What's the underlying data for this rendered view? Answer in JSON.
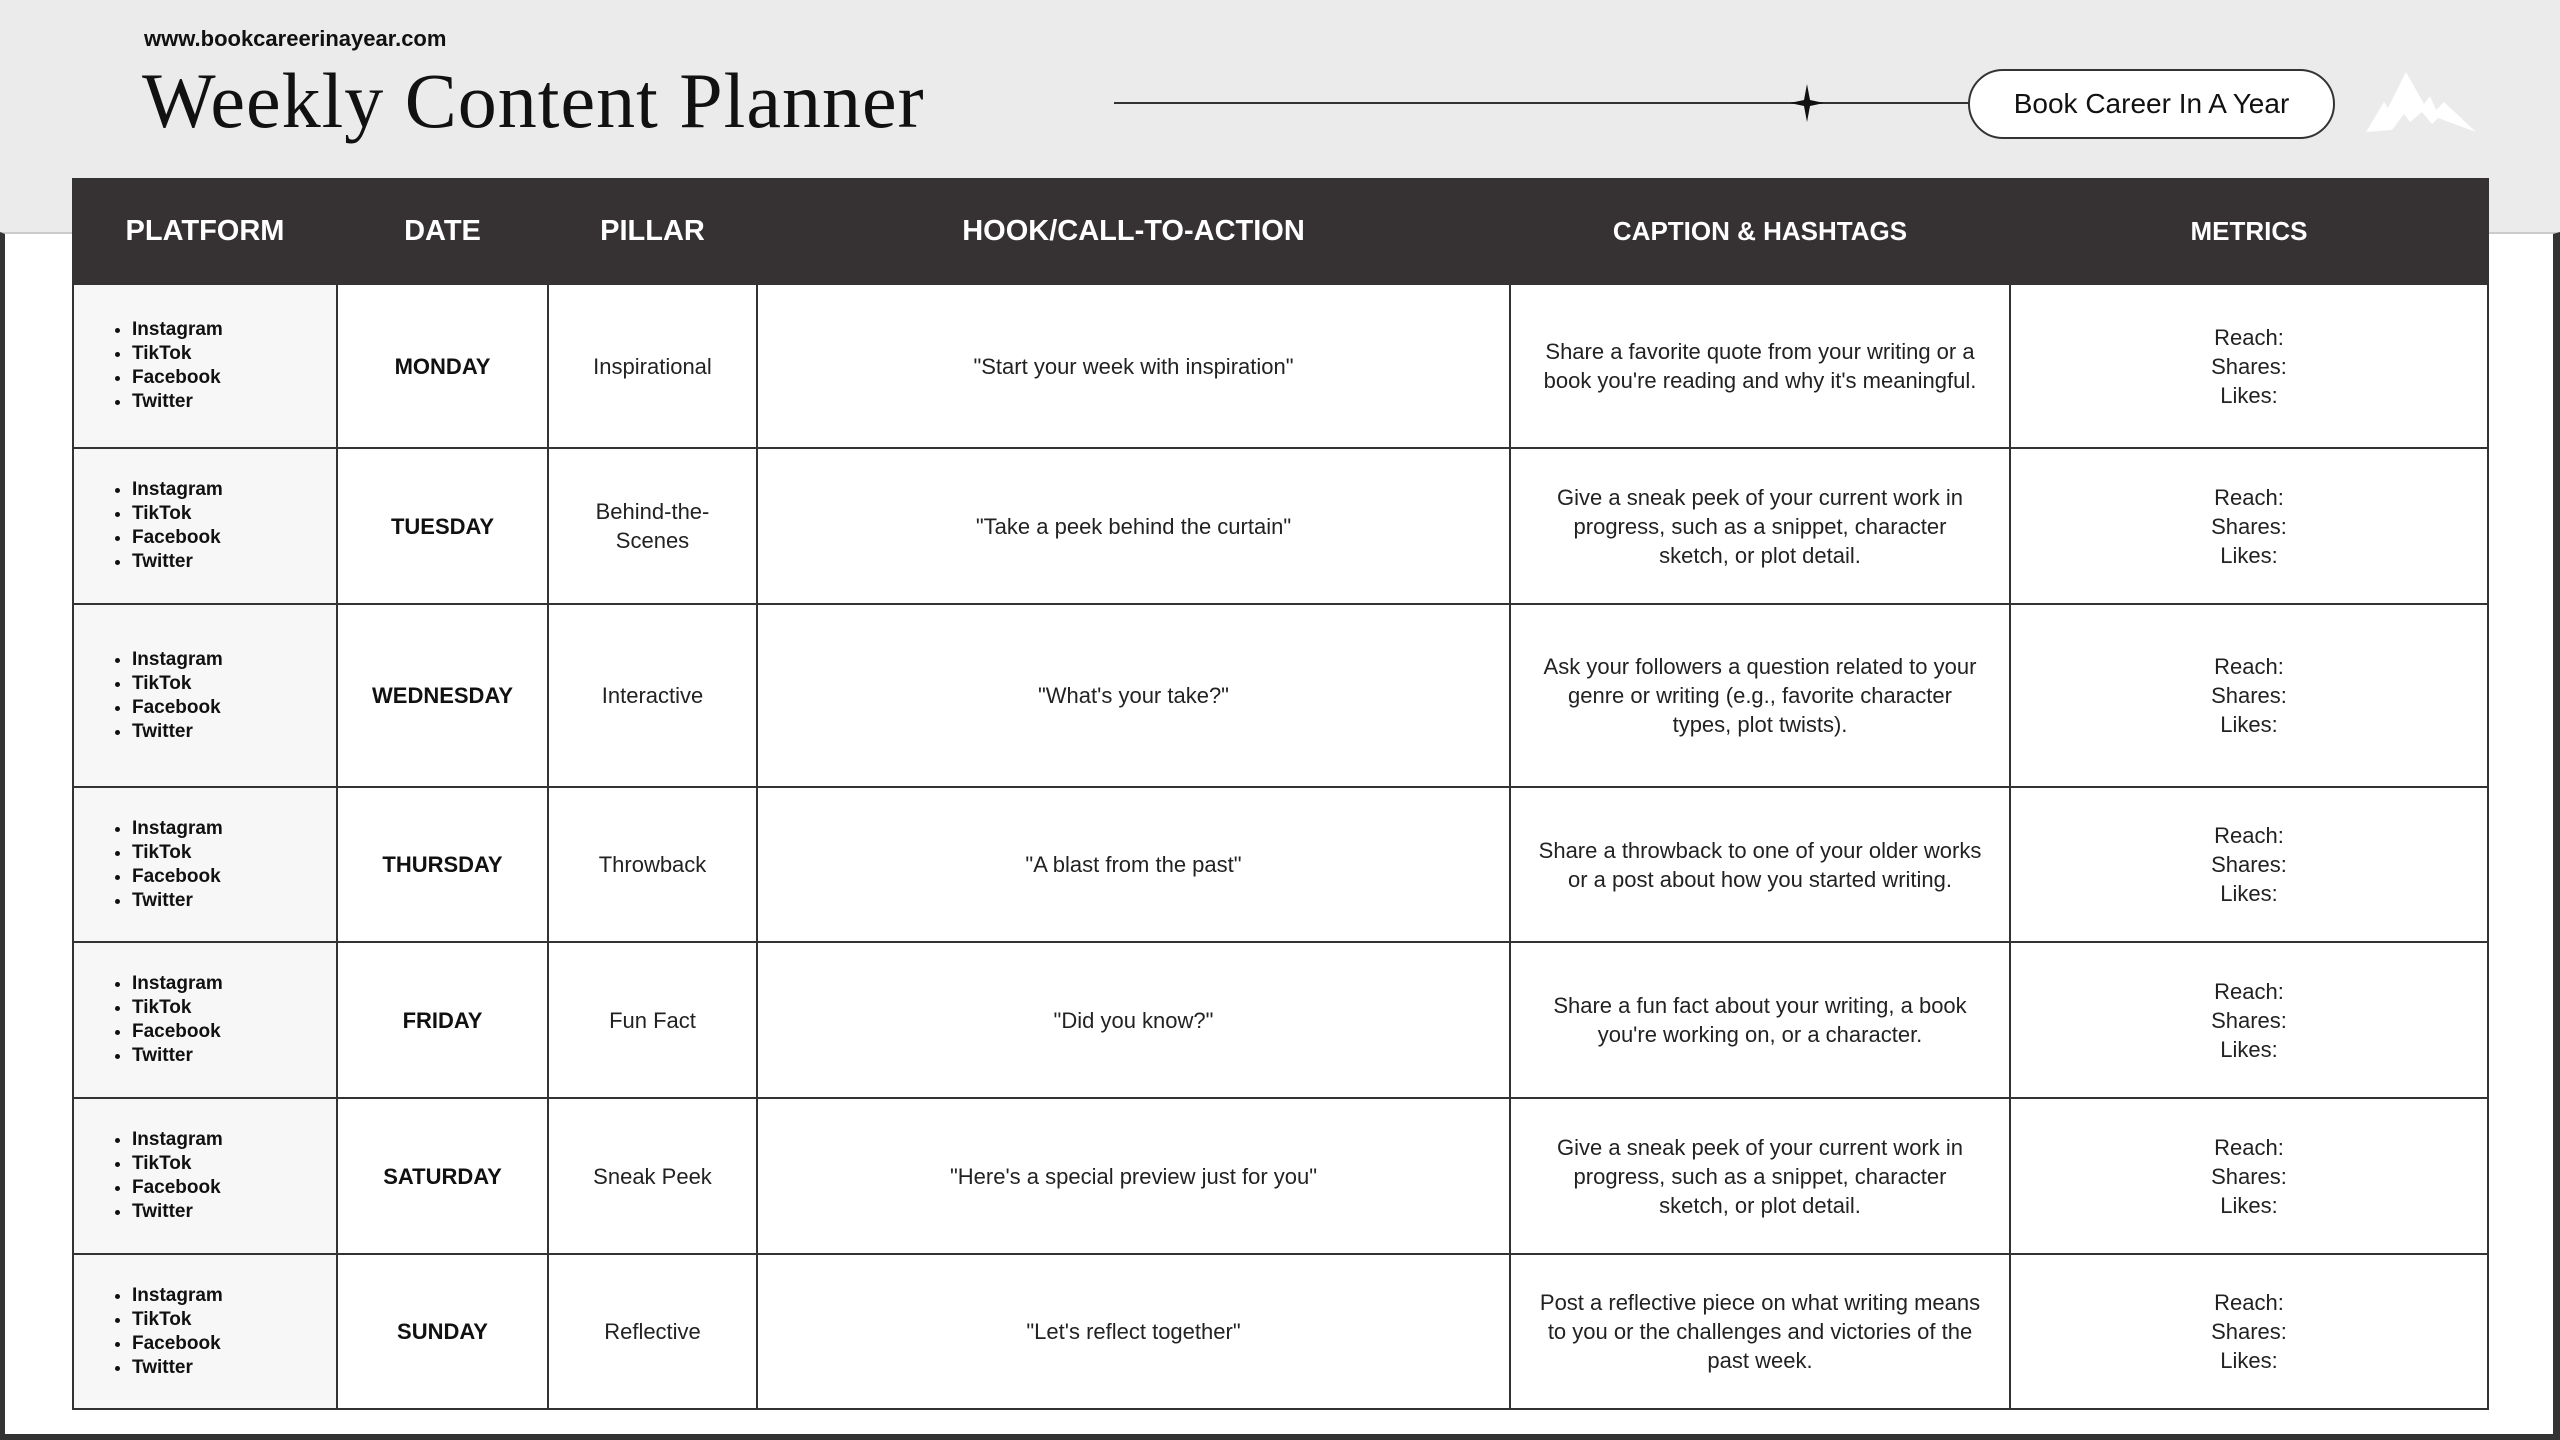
{
  "header": {
    "url": "www.bookcareerinayear.com",
    "title": "Weekly Content Planner",
    "brand_pill": "Book Career In A Year",
    "icons": [
      "sparkle-star-icon",
      "mountain-logo-icon"
    ]
  },
  "table": {
    "columns": [
      "PLATFORM",
      "DATE",
      "PILLAR",
      "HOOK/CALL-TO-ACTION",
      "CAPTION & HASHTAGS",
      "METRICS"
    ],
    "metric_labels": [
      "Reach:",
      "Shares:",
      "Likes:"
    ],
    "rows": [
      {
        "platforms": [
          "Instagram",
          "TikTok",
          "Facebook",
          "Twitter"
        ],
        "date": "MONDAY",
        "pillar": "Inspirational",
        "hook": "\"Start your week with inspiration\"",
        "caption": "Share a favorite quote from your writing or a book you're reading and why it's meaningful."
      },
      {
        "platforms": [
          "Instagram",
          "TikTok",
          "Facebook",
          "Twitter"
        ],
        "date": "TUESDAY",
        "pillar": "Behind-the-Scenes",
        "hook": "\"Take a peek behind the curtain\"",
        "caption": "Give a sneak peek of your current work in progress, such as a snippet, character sketch, or plot detail."
      },
      {
        "platforms": [
          "Instagram",
          "TikTok",
          "Facebook",
          "Twitter"
        ],
        "date": "WEDNESDAY",
        "pillar": "Interactive",
        "hook": "\"What's your take?\"",
        "caption": "Ask your followers a question related to your genre or writing (e.g., favorite character types, plot twists)."
      },
      {
        "platforms": [
          "Instagram",
          "TikTok",
          "Facebook",
          "Twitter"
        ],
        "date": "THURSDAY",
        "pillar": "Throwback",
        "hook": "\"A blast from the past\"",
        "caption": "Share a throwback to one of your older works or a post about how you started writing."
      },
      {
        "platforms": [
          "Instagram",
          "TikTok",
          "Facebook",
          "Twitter"
        ],
        "date": "FRIDAY",
        "pillar": "Fun Fact",
        "hook": "\"Did you know?\"",
        "caption": "Share a fun fact about your writing, a book you're working on, or a character."
      },
      {
        "platforms": [
          "Instagram",
          "TikTok",
          "Facebook",
          "Twitter"
        ],
        "date": "SATURDAY",
        "pillar": "Sneak Peek",
        "hook": "\"Here's a special preview just for you\"",
        "caption": "Give a sneak peek of your current work in progress, such as a snippet, character sketch, or plot detail."
      },
      {
        "platforms": [
          "Instagram",
          "TikTok",
          "Facebook",
          "Twitter"
        ],
        "date": "SUNDAY",
        "pillar": "Reflective",
        "hook": "\"Let's reflect together\"",
        "caption": "Post a reflective piece on what writing means to you or the challenges and victories of the past week."
      }
    ]
  }
}
